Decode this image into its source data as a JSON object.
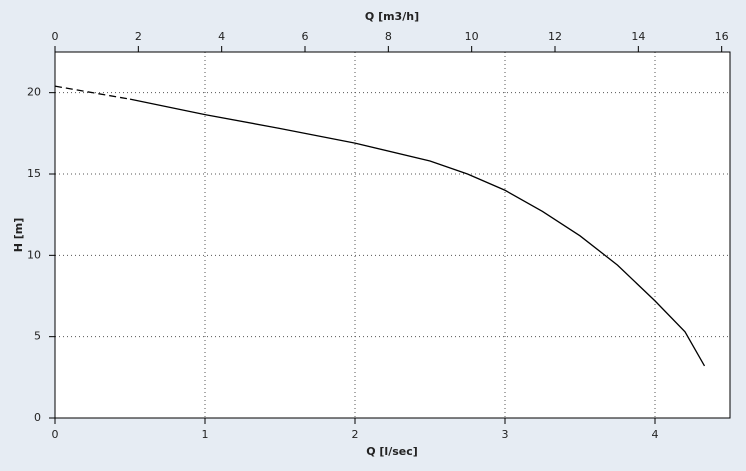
{
  "chart_data": {
    "type": "line",
    "x_label": "Q [l/sec]",
    "x2_label": "Q [m3/h]",
    "y_label": "H [m]",
    "xlim": [
      0,
      4.5
    ],
    "xticks": [
      0,
      1,
      2,
      3,
      4
    ],
    "x2lim": [
      0,
      16.2
    ],
    "x2ticks": [
      0,
      2,
      4,
      6,
      8,
      10,
      12,
      14,
      16
    ],
    "ylim": [
      0,
      22.5
    ],
    "yticks": [
      0,
      5,
      10,
      15,
      20
    ],
    "grid": true,
    "series": [
      {
        "style": "dashed",
        "color": "#000000",
        "x": [
          0,
          0.25,
          0.5
        ],
        "values": [
          20.4,
          20.0,
          19.6
        ]
      },
      {
        "style": "solid",
        "color": "#000000",
        "x": [
          0.5,
          1,
          1.5,
          2,
          2.5,
          2.75,
          3,
          3.25,
          3.5,
          3.75,
          4,
          4.2,
          4.33
        ],
        "values": [
          19.6,
          18.65,
          17.8,
          16.9,
          15.8,
          15.0,
          14.0,
          12.7,
          11.2,
          9.4,
          7.2,
          5.3,
          3.2
        ]
      }
    ]
  }
}
